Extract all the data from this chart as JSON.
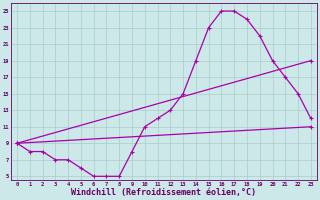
{
  "background_color": "#cce8e8",
  "grid_color": "#aacccc",
  "line_color": "#aa00aa",
  "xlabel": "Windchill (Refroidissement éolien,°C)",
  "xlabel_fontsize": 6,
  "ytick_labels": [
    "5",
    "7",
    "9",
    "11",
    "13",
    "15",
    "17",
    "19",
    "21",
    "23",
    "25"
  ],
  "ytick_values": [
    5,
    7,
    9,
    11,
    13,
    15,
    17,
    19,
    21,
    23,
    25
  ],
  "xtick_values": [
    0,
    1,
    2,
    3,
    4,
    5,
    6,
    7,
    8,
    9,
    10,
    11,
    12,
    13,
    14,
    15,
    16,
    17,
    18,
    19,
    20,
    21,
    22,
    23
  ],
  "ylim": [
    4.5,
    26
  ],
  "xlim": [
    -0.5,
    23.5
  ],
  "series1": {
    "x": [
      0,
      1,
      2,
      3,
      4,
      5,
      6,
      7,
      8,
      9,
      10,
      11,
      12,
      13,
      14,
      15,
      16,
      17,
      18,
      19,
      20,
      21,
      22,
      23
    ],
    "y": [
      9,
      8,
      8,
      7,
      7,
      6,
      5,
      5,
      5,
      8,
      11,
      12,
      13,
      15,
      19,
      23,
      25,
      25,
      24,
      22,
      19,
      17,
      15,
      12
    ]
  },
  "series2": {
    "x": [
      0,
      23
    ],
    "y": [
      9,
      11
    ]
  },
  "series3": {
    "x": [
      0,
      23
    ],
    "y": [
      9,
      19
    ]
  }
}
